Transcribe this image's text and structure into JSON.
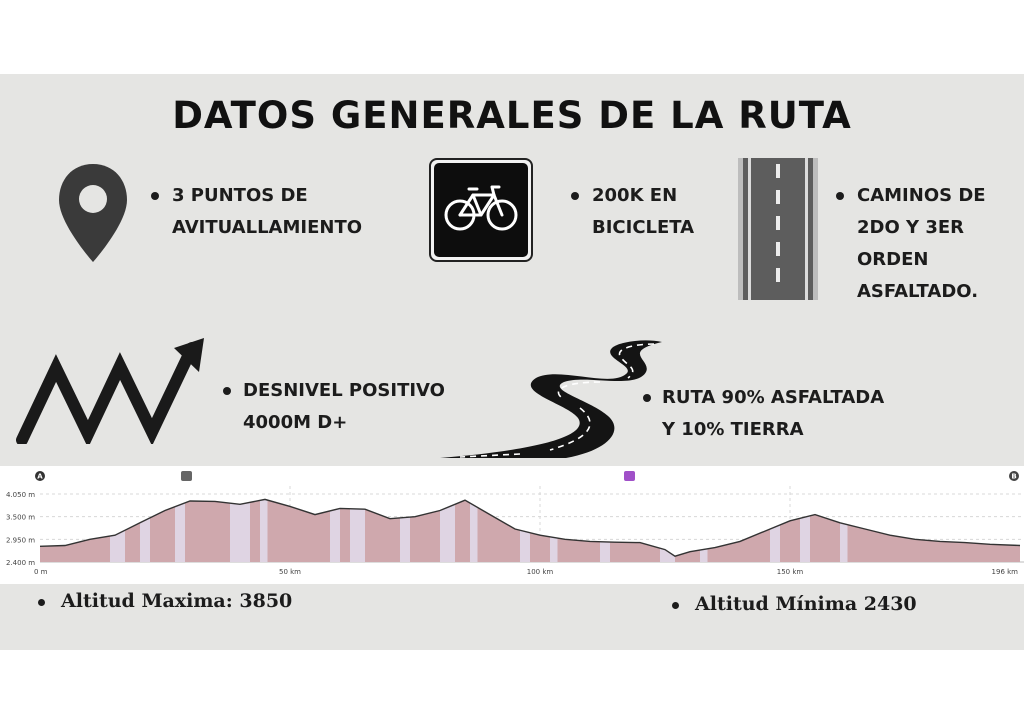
{
  "title": "DATOS GENERALES DE LA RUTA",
  "items": {
    "avituallamiento": [
      "3 PUNTOS DE",
      "AVITUALLAMIENTO"
    ],
    "bicicleta": [
      "200K EN",
      "BICICLETA"
    ],
    "caminos": [
      "CAMINOS DE",
      "2DO Y 3ER",
      "ORDEN",
      "ASFALTADO."
    ],
    "desnivel": [
      "DESNIVEL POSITIVO",
      "4000M D+"
    ],
    "ruta": [
      "RUTA 90% ASFALTADA",
      "Y 10% TIERRA"
    ]
  },
  "icons": [
    "map-pin-icon",
    "bicycle-sign-icon",
    "road-icon",
    "zigzag-arrow-icon",
    "winding-road-icon"
  ],
  "chart_data": {
    "type": "area",
    "markers": [
      "A",
      "B"
    ],
    "y_ticks": [
      "4.050 m",
      "3.500 m",
      "2.950 m",
      "2.400 m"
    ],
    "x_ticks": [
      "0 m",
      "50 km",
      "100 km",
      "150 km",
      "196 km"
    ],
    "ylim": [
      2400,
      4050
    ],
    "xlim": [
      0,
      196
    ],
    "x": [
      0,
      5,
      10,
      15,
      20,
      25,
      30,
      35,
      40,
      45,
      50,
      55,
      60,
      65,
      70,
      75,
      80,
      85,
      90,
      95,
      100,
      105,
      110,
      115,
      120,
      125,
      127,
      130,
      135,
      140,
      145,
      150,
      155,
      160,
      165,
      170,
      175,
      180,
      185,
      190,
      196
    ],
    "y": [
      2780,
      2800,
      2950,
      3050,
      3350,
      3650,
      3880,
      3870,
      3800,
      3920,
      3750,
      3550,
      3700,
      3680,
      3450,
      3500,
      3650,
      3900,
      3550,
      3200,
      3050,
      2950,
      2900,
      2880,
      2870,
      2700,
      2540,
      2650,
      2750,
      2900,
      3150,
      3400,
      3550,
      3350,
      3200,
      3050,
      2950,
      2900,
      2870,
      2830,
      2800
    ],
    "colors": {
      "fill": "#cfa8ad",
      "line": "#333333",
      "accent": "#a050c8"
    }
  },
  "stats": {
    "max": "Altitud Maxima: 3850",
    "min": "Altitud Mínima 2430"
  }
}
